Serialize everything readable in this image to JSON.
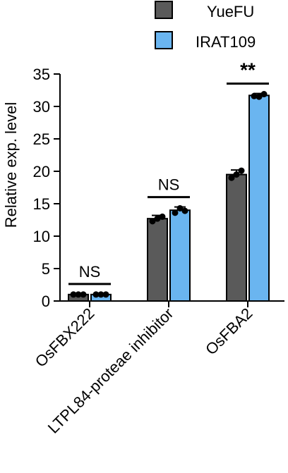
{
  "chart_data": {
    "type": "bar",
    "ylabel": "Relative exp. level",
    "ylim": [
      0,
      35
    ],
    "yticks": [
      0,
      5,
      10,
      15,
      20,
      25,
      30,
      35
    ],
    "grid": false,
    "legend_position": "top-right",
    "categories": [
      "OsFBX222",
      "LTPL84-proteae inhibitor",
      "OsFBA2"
    ],
    "series": [
      {
        "name": "YueFU",
        "color": "#5a5a5a",
        "values": [
          1.0,
          12.7,
          19.5
        ],
        "errors": [
          0.1,
          0.5,
          0.7
        ],
        "points": [
          [
            1.0,
            1.0,
            1.0
          ],
          [
            12.3,
            12.7,
            13.0
          ],
          [
            19.0,
            19.5,
            20.1
          ]
        ]
      },
      {
        "name": "IRAT109",
        "color": "#6ab5f0",
        "values": [
          1.0,
          14.0,
          31.7
        ],
        "errors": [
          0.1,
          0.5,
          0.3
        ],
        "points": [
          [
            1.0,
            1.0,
            1.0
          ],
          [
            13.6,
            14.3,
            13.9
          ],
          [
            31.6,
            31.5,
            31.9
          ]
        ]
      }
    ],
    "significance": [
      "NS",
      "NS",
      "**"
    ]
  }
}
